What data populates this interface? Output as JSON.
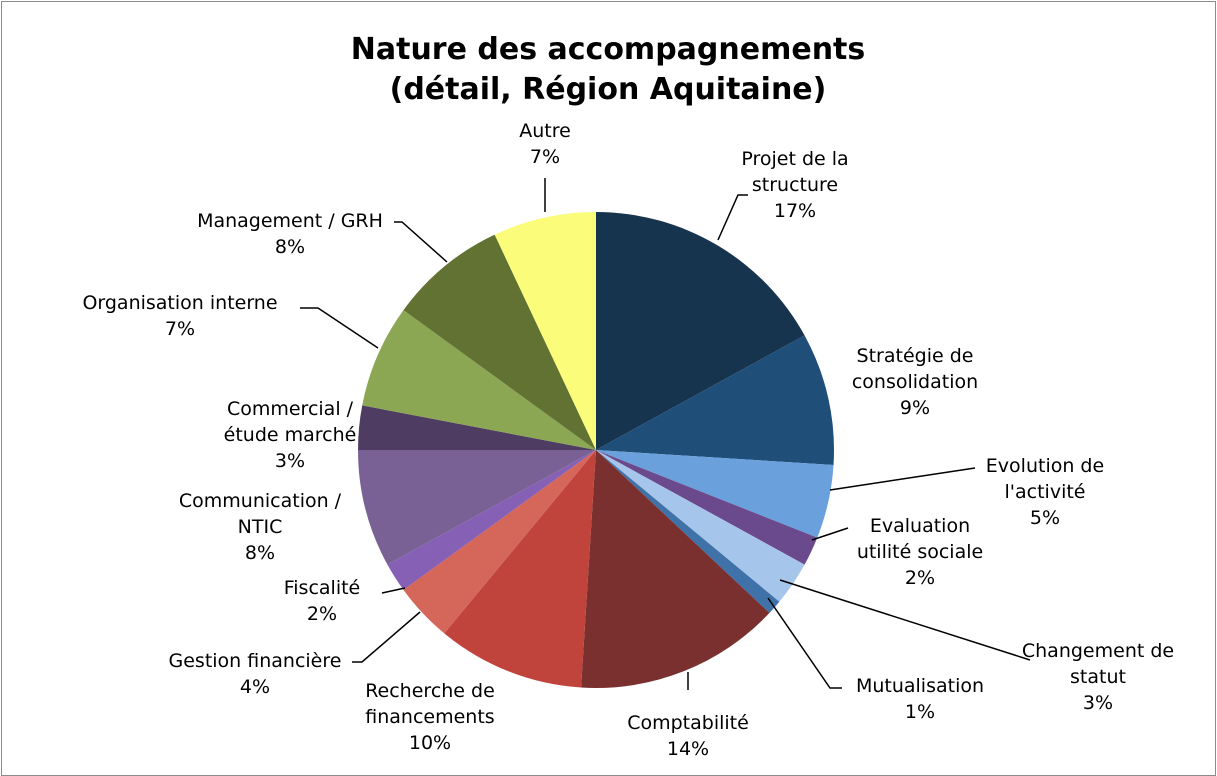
{
  "chart_data": {
    "type": "pie",
    "title": "Nature des accompagnements (détail, Région Aquitaine)",
    "categories": [
      "Projet de la structure",
      "Stratégie de consolidation",
      "Evolution de l'activité",
      "Evaluation utilité sociale",
      "Changement de statut",
      "Mutualisation",
      "Comptabilité",
      "Recherche de financements",
      "Gestion financière",
      "Fiscalité",
      "Communication / NTIC",
      "Commercial / étude marché",
      "Organisation interne",
      "Management / GRH",
      "Autre"
    ],
    "values": [
      17,
      9,
      5,
      2,
      3,
      1,
      14,
      10,
      4,
      2,
      8,
      3,
      7,
      8,
      7
    ],
    "value_labels": [
      "17%",
      "9%",
      "5%",
      "2%",
      "3%",
      "1%",
      "14%",
      "10%",
      "4%",
      "2%",
      "8%",
      "3%",
      "7%",
      "8%",
      "7%"
    ],
    "colors": [
      "#17344f",
      "#1f4e79",
      "#6aa1dd",
      "#6a4a8c",
      "#a6c5ea",
      "#3f72a8",
      "#7a302e",
      "#c0433c",
      "#d5665a",
      "#8560b5",
      "#7a6195",
      "#4e3c62",
      "#8ba753",
      "#617233",
      "#fcfc7b"
    ]
  }
}
